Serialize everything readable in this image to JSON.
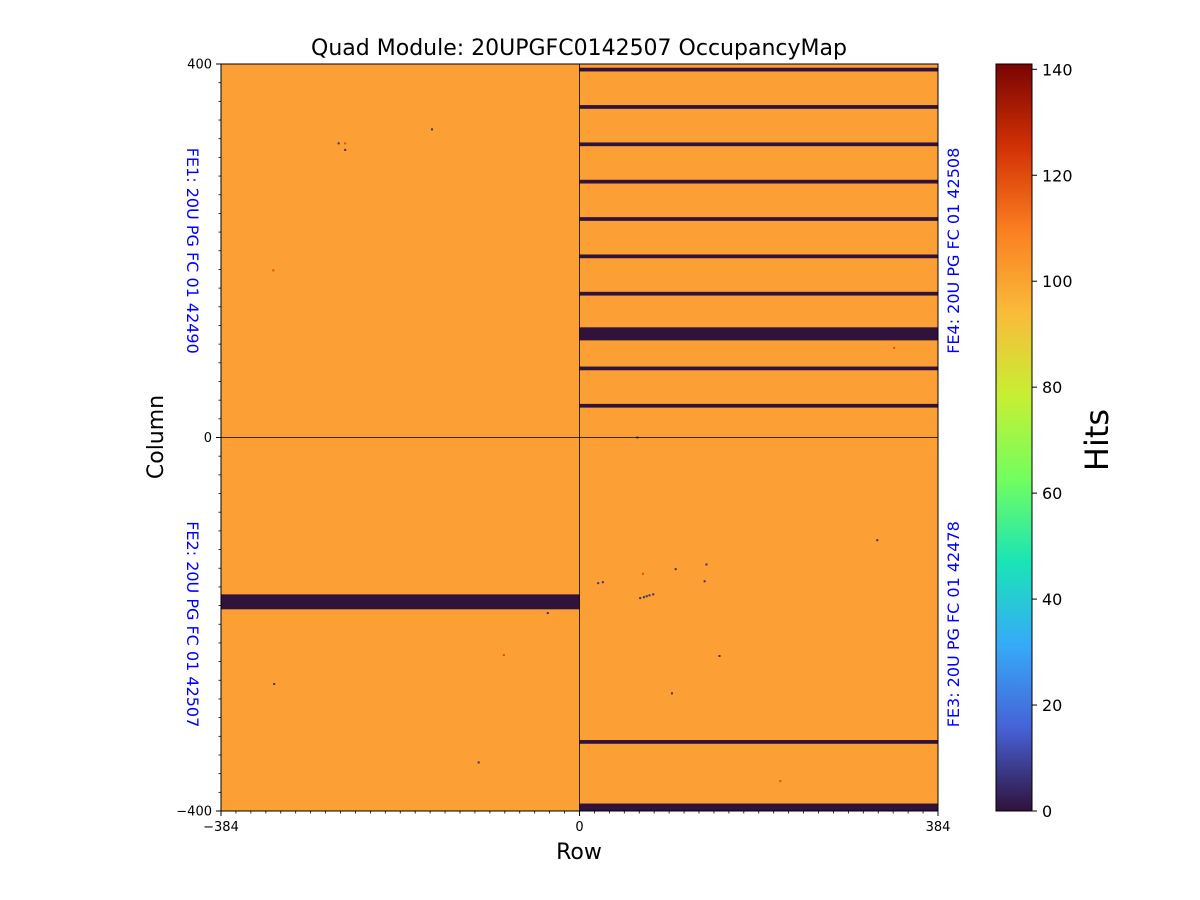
{
  "chart_data": {
    "type": "heatmap",
    "title": "Quad Module: 20UPGFC0142507 OccupancyMap",
    "xlabel": "Row",
    "ylabel": "Column",
    "xlim": [
      -384,
      384
    ],
    "ylim": [
      -400,
      400
    ],
    "x_ticks": [
      {
        "value": -384,
        "label": "−384"
      },
      {
        "value": 0,
        "label": "0"
      },
      {
        "value": 384,
        "label": "384"
      }
    ],
    "y_ticks": [
      {
        "value": 400,
        "label": "400"
      },
      {
        "value": 0,
        "label": "0"
      },
      {
        "value": -400,
        "label": "−400"
      }
    ],
    "colorbar": {
      "label": "Hits",
      "min": 0,
      "max": 141,
      "ticks": [
        {
          "value": 0,
          "label": "0"
        },
        {
          "value": 20,
          "label": "20"
        },
        {
          "value": 40,
          "label": "40"
        },
        {
          "value": 60,
          "label": "60"
        },
        {
          "value": 80,
          "label": "80"
        },
        {
          "value": 100,
          "label": "100"
        },
        {
          "value": 120,
          "label": "120"
        },
        {
          "value": 140,
          "label": "140"
        }
      ],
      "colormap_stops": [
        "#30123b",
        "#4662d7",
        "#36aaf9",
        "#1ae4b6",
        "#72fe5e",
        "#c7ef34",
        "#fabb3a",
        "#fb7e21",
        "#d23105",
        "#7a0403"
      ]
    },
    "baseline_value": 100,
    "baseline_color": "#fca035",
    "dead_color": "#30123b",
    "chips": [
      {
        "name": "FE1",
        "label": "FE1: 20U PG FC 01 42490",
        "x_range": [
          -384,
          0
        ],
        "y_range": [
          0,
          400
        ],
        "label_side": "left"
      },
      {
        "name": "FE2",
        "label": "FE2: 20U PG FC 01 42507",
        "x_range": [
          -384,
          0
        ],
        "y_range": [
          -400,
          0
        ],
        "label_side": "left"
      },
      {
        "name": "FE3",
        "label": "FE3: 20U PG FC 01 42478",
        "x_range": [
          0,
          384
        ],
        "y_range": [
          -400,
          0
        ],
        "label_side": "right"
      },
      {
        "name": "FE4",
        "label": "FE4: 20U PG FC 01 42508",
        "x_range": [
          0,
          384
        ],
        "y_range": [
          0,
          400
        ],
        "label_side": "right"
      }
    ],
    "fe_label_color": "#0000ff",
    "dead_bands": [
      {
        "chip": "FE4",
        "x_range": [
          0,
          384
        ],
        "y_range": [
          392,
          396
        ]
      },
      {
        "chip": "FE4",
        "x_range": [
          0,
          384
        ],
        "y_range": [
          352,
          356
        ]
      },
      {
        "chip": "FE4",
        "x_range": [
          0,
          384
        ],
        "y_range": [
          312,
          316
        ]
      },
      {
        "chip": "FE4",
        "x_range": [
          0,
          384
        ],
        "y_range": [
          272,
          276
        ]
      },
      {
        "chip": "FE4",
        "x_range": [
          0,
          384
        ],
        "y_range": [
          232,
          236
        ]
      },
      {
        "chip": "FE4",
        "x_range": [
          0,
          384
        ],
        "y_range": [
          192,
          196
        ]
      },
      {
        "chip": "FE4",
        "x_range": [
          0,
          384
        ],
        "y_range": [
          152,
          156
        ]
      },
      {
        "chip": "FE4",
        "x_range": [
          0,
          384
        ],
        "y_range": [
          104,
          118
        ]
      },
      {
        "chip": "FE4",
        "x_range": [
          0,
          384
        ],
        "y_range": [
          72,
          76
        ]
      },
      {
        "chip": "FE4",
        "x_range": [
          0,
          384
        ],
        "y_range": [
          32,
          36
        ]
      },
      {
        "chip": "FE2",
        "x_range": [
          -384,
          0
        ],
        "y_range": [
          -184,
          -168
        ]
      },
      {
        "chip": "FE3",
        "x_range": [
          0,
          384
        ],
        "y_range": [
          -328,
          -324
        ]
      },
      {
        "chip": "FE3",
        "x_range": [
          0,
          384
        ],
        "y_range": [
          -400,
          -392
        ]
      }
    ],
    "hot_or_dead_pixels": [
      {
        "x": -258,
        "y": 315,
        "value": 5
      },
      {
        "x": -251,
        "y": 315,
        "value": 120
      },
      {
        "x": -251,
        "y": 308,
        "value": 5
      },
      {
        "x": -158,
        "y": 330,
        "value": 5
      },
      {
        "x": -328,
        "y": 179,
        "value": 120
      },
      {
        "x": 337,
        "y": 96,
        "value": 120
      },
      {
        "x": 62,
        "y": 0,
        "value": 5
      },
      {
        "x": 319,
        "y": -110,
        "value": 5
      },
      {
        "x": 136,
        "y": -136,
        "value": 5
      },
      {
        "x": 103,
        "y": -141,
        "value": 5
      },
      {
        "x": 68,
        "y": -146,
        "value": 120
      },
      {
        "x": 134,
        "y": -154,
        "value": 5
      },
      {
        "x": 20,
        "y": -156,
        "value": 5
      },
      {
        "x": 25,
        "y": -155,
        "value": 5
      },
      {
        "x": 65,
        "y": -172,
        "value": 5
      },
      {
        "x": 69,
        "y": -171,
        "value": 5
      },
      {
        "x": 72,
        "y": -170,
        "value": 5
      },
      {
        "x": 75,
        "y": -169,
        "value": 5
      },
      {
        "x": 79,
        "y": -168,
        "value": 5
      },
      {
        "x": -34,
        "y": -188,
        "value": 5
      },
      {
        "x": -81,
        "y": -233,
        "value": 120
      },
      {
        "x": 150,
        "y": -234,
        "value": 5
      },
      {
        "x": -327,
        "y": -264,
        "value": 5
      },
      {
        "x": 99,
        "y": -274,
        "value": 5
      },
      {
        "x": -108,
        "y": -348,
        "value": 5
      },
      {
        "x": 215,
        "y": -368,
        "value": 120
      }
    ]
  }
}
